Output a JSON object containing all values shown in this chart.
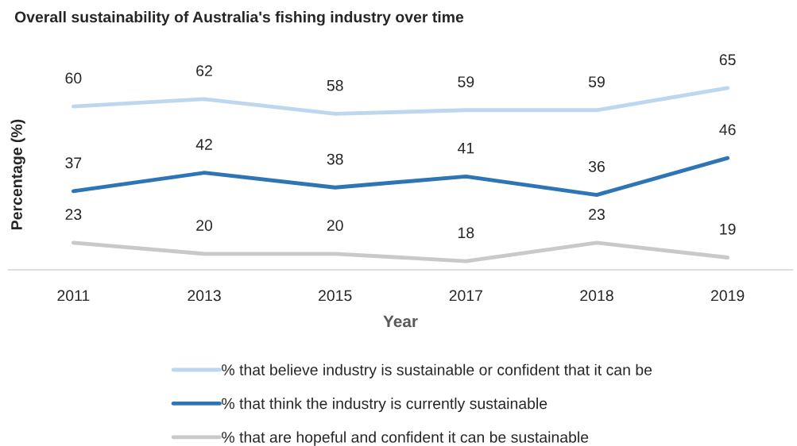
{
  "chart_data": {
    "type": "line",
    "title": "Overall sustainability of Australia's fishing industry over time",
    "xlabel": "Year",
    "ylabel": "Percentage (%)",
    "categories": [
      "2011",
      "2013",
      "2015",
      "2017",
      "2018",
      "2019"
    ],
    "series": [
      {
        "name": "% that believe industry is sustainable or confident that it can be",
        "color": "#bdd7ee",
        "values": [
          60,
          62,
          58,
          59,
          59,
          65
        ]
      },
      {
        "name": "% that think the industry is currently sustainable",
        "color": "#2e75b6",
        "values": [
          37,
          42,
          38,
          41,
          36,
          46
        ]
      },
      {
        "name": "% that are hopeful and confident it can be sustainable",
        "color": "#c9c9c9",
        "values": [
          23,
          20,
          20,
          18,
          23,
          19
        ]
      }
    ],
    "data_labels": true,
    "legend": "bottom",
    "grid": false,
    "tick_labels": "x",
    "marker": "none",
    "line_style": "solid"
  }
}
